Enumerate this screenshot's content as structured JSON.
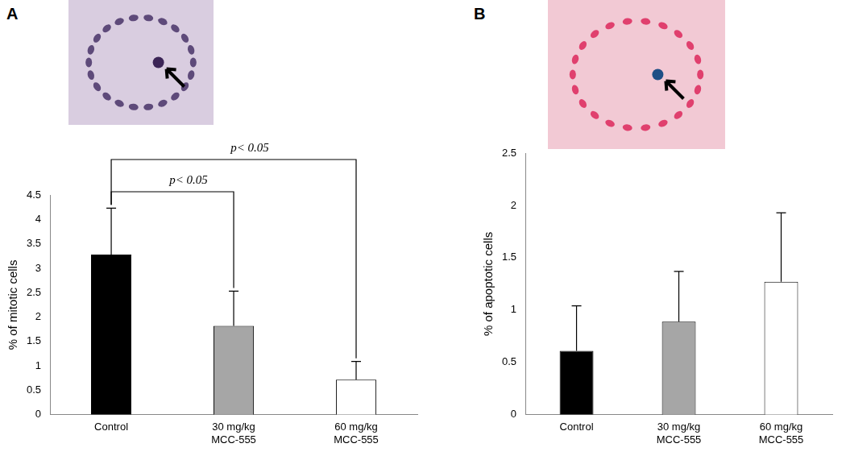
{
  "chart_data": [
    {
      "type": "bar",
      "title": "A",
      "y_label": "% of mitotic cells",
      "categories": [
        [
          "Control"
        ],
        [
          "30 mg/kg",
          "MCC-555"
        ],
        [
          "60 mg/kg",
          "MCC-555"
        ]
      ],
      "values": [
        3.28,
        1.82,
        0.72
      ],
      "errors": [
        0.95,
        0.71,
        0.37
      ],
      "colors": [
        "#000000",
        "#a6a6a6",
        "#ffffff"
      ],
      "ylim": [
        0,
        4.5
      ],
      "yticks": [
        0,
        0.5,
        1,
        1.5,
        2,
        2.5,
        3,
        3.5,
        4,
        4.5
      ],
      "grid": false,
      "annotations": [
        {
          "text": "p< 0.05",
          "between": [
            0,
            1
          ]
        },
        {
          "text": "p< 0.05",
          "between": [
            0,
            2
          ]
        }
      ]
    },
    {
      "type": "bar",
      "title": "B",
      "y_label": "% of apoptotic cells",
      "categories": [
        [
          "Control"
        ],
        [
          "30 mg/kg",
          "MCC-555"
        ],
        [
          "60 mg/kg",
          "MCC-555"
        ]
      ],
      "values": [
        0.61,
        0.89,
        1.27
      ],
      "errors": [
        0.43,
        0.48,
        0.66
      ],
      "colors": [
        "#000000",
        "#a6a6a6",
        "#ffffff"
      ],
      "ylim": [
        0,
        2.5
      ],
      "yticks": [
        0,
        0.5,
        1,
        1.5,
        2,
        2.5
      ],
      "grid": false
    }
  ]
}
